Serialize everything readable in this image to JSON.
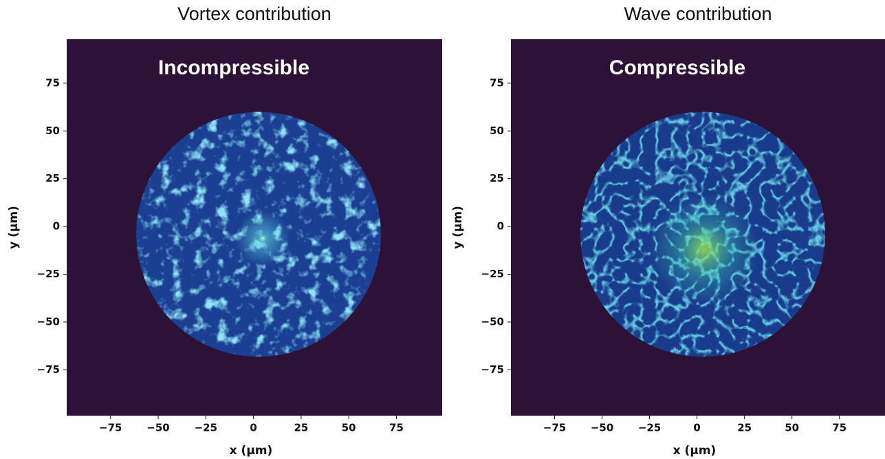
{
  "chart_data": [
    {
      "type": "heatmap",
      "title": "Vortex contribution",
      "annotation": "Incompressible",
      "xlabel": "x (µm)",
      "ylabel": "y (µm)",
      "background": "#2c1236",
      "field_color": "#1b3f92",
      "highlight_color": "#45c8f0",
      "xlim": [
        -98,
        99
      ],
      "ylim": [
        -99,
        98
      ],
      "xticks": [
        {
          "value": -75,
          "label": "−75"
        },
        {
          "value": -50,
          "label": "−50"
        },
        {
          "value": -25,
          "label": "−25"
        },
        0,
        25,
        50,
        75
      ],
      "yticks": [
        {
          "value": -75,
          "label": "−75"
        },
        {
          "value": -50,
          "label": "−50"
        },
        {
          "value": -25,
          "label": "−25"
        },
        0,
        25,
        50,
        75
      ]
    },
    {
      "type": "heatmap",
      "title": "Wave contribution",
      "annotation": "Compressible",
      "xlabel": "x (µm)",
      "ylabel": "y (µm)",
      "background": "#2c1236",
      "field_color": "#193b8c",
      "highlight_color": "#3ad0b0",
      "xlim": [
        -98,
        99
      ],
      "ylim": [
        -99,
        98
      ],
      "xticks": [
        {
          "value": -75,
          "label": "−75"
        },
        {
          "value": -50,
          "label": "−50"
        },
        {
          "value": -25,
          "label": "−25"
        },
        0,
        25,
        50,
        75
      ],
      "yticks": [
        {
          "value": -75,
          "label": "−75"
        },
        {
          "value": -50,
          "label": "−50"
        },
        {
          "value": -25,
          "label": "−25"
        },
        0,
        25,
        50,
        75
      ]
    }
  ]
}
